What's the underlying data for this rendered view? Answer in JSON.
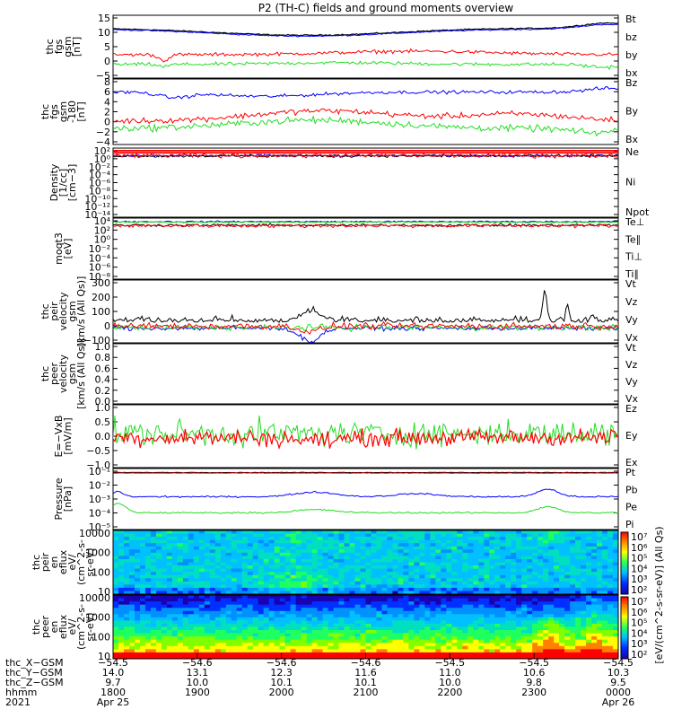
{
  "title": "P2 (TH-C) fields and ground moments overview",
  "palette": {
    "black": "#000000",
    "red": "#ff0000",
    "green": "#22dd22",
    "blue": "#0000ff"
  },
  "chart_data": [
    {
      "type": "line",
      "id": "p1",
      "ylabel": [
        "thc",
        "fgs",
        "gsm",
        "[nT]"
      ],
      "ticks": [
        "15",
        "10",
        "5",
        "0",
        "−5"
      ],
      "ylim": [
        -6,
        16
      ],
      "legend": [
        {
          "text": "Bt",
          "color": "black"
        },
        {
          "text": "bz",
          "color": "red"
        },
        {
          "text": "by",
          "color": "green"
        },
        {
          "text": "bx",
          "color": "blue"
        }
      ]
    },
    {
      "type": "line",
      "id": "p2",
      "ylabel": [
        "thc",
        "fgs",
        "gsm",
        "-180",
        "[nT]"
      ],
      "ticks": [
        "8",
        "6",
        "4",
        "2",
        "0",
        "−2",
        "−4"
      ],
      "ylim": [
        -5,
        9
      ],
      "legend": [
        {
          "text": "Bz",
          "color": "red"
        },
        {
          "text": "By",
          "color": "green"
        },
        {
          "text": "Bx",
          "color": "blue"
        }
      ]
    },
    {
      "type": "line",
      "id": "p3",
      "ylabel": [
        "Density",
        "[1/cc]",
        "[cm−3]"
      ],
      "ticks": [
        "10²",
        "10⁰",
        "10⁻²",
        "10⁻⁴",
        "10⁻⁶",
        "10⁻⁸",
        "10⁻¹⁰",
        "10⁻¹²",
        "10⁻¹⁴"
      ],
      "ylim": [
        1e-14,
        100.0
      ],
      "log": true,
      "legend": [
        {
          "text": "Ne",
          "color": "red"
        },
        {
          "text": "Ni",
          "color": "black"
        },
        {
          "text": "Npot",
          "color": "blue"
        }
      ]
    },
    {
      "type": "line",
      "id": "p4",
      "ylabel": [
        "moqt3",
        "[eV]"
      ],
      "ticks": [
        "10⁴",
        "10²",
        "10⁰",
        "10⁻²",
        "10⁻⁴",
        "10⁻⁶",
        "10⁻⁸"
      ],
      "ylim": [
        1e-08,
        10000.0
      ],
      "log": true,
      "legend": [
        {
          "text": "Te⊥",
          "color": "red"
        },
        {
          "text": "Te∥",
          "color": "black"
        },
        {
          "text": "Ti⊥",
          "color": "blue"
        },
        {
          "text": "Ti∥",
          "color": "green"
        }
      ]
    },
    {
      "type": "line",
      "id": "p5",
      "ylabel": [
        "thc",
        "peir",
        "velocity",
        "gsm",
        "[km/s (All Qs)]"
      ],
      "ticks": [
        "300",
        "200",
        "100",
        "0",
        "−100"
      ],
      "ylim": [
        -110,
        320
      ],
      "legend": [
        {
          "text": "Vt",
          "color": "black"
        },
        {
          "text": "Vz",
          "color": "red"
        },
        {
          "text": "Vy",
          "color": "green"
        },
        {
          "text": "Vx",
          "color": "blue"
        }
      ]
    },
    {
      "type": "line",
      "id": "p6",
      "ylabel": [
        "thc",
        "peer",
        "velocity",
        "gsm",
        "[km/s (All Qs)]"
      ],
      "ticks": [
        "1.0",
        "0.8",
        "0.6",
        "0.4",
        "0.2",
        "0.0"
      ],
      "ylim": [
        0,
        1
      ],
      "legend": [
        {
          "text": "Vt",
          "color": "black"
        },
        {
          "text": "Vz",
          "color": "red"
        },
        {
          "text": "Vy",
          "color": "green"
        },
        {
          "text": "Vx",
          "color": "blue"
        }
      ]
    },
    {
      "type": "line",
      "id": "p7",
      "ylabel": [
        "E=−VxB",
        "[mV/m]"
      ],
      "ticks": [
        "1.0",
        "0.5",
        "0.0",
        "−0.5",
        "−1.0"
      ],
      "ylim": [
        -1.1,
        1.2
      ],
      "legend": [
        {
          "text": "Ez",
          "color": "red"
        },
        {
          "text": "Ey",
          "color": "green"
        },
        {
          "text": "Ex",
          "color": "blue"
        }
      ]
    },
    {
      "type": "line",
      "id": "p8",
      "ylabel": [
        "Pressure",
        "[nPa]"
      ],
      "ticks": [
        "10⁻¹",
        "10⁻²",
        "10⁻³",
        "10⁻⁴",
        "10⁻⁵"
      ],
      "ylim": [
        1e-05,
        0.1
      ],
      "log": true,
      "legend": [
        {
          "text": "Pt",
          "color": "black"
        },
        {
          "text": "Pb",
          "color": "red"
        },
        {
          "text": "Pe",
          "color": "green"
        },
        {
          "text": "Pi",
          "color": "blue"
        }
      ]
    },
    {
      "type": "heatmap",
      "id": "p9",
      "ylabel": [
        "thc",
        "peir",
        "en",
        "eflux",
        "eV/",
        "(cm^2-s-",
        "sr-eV)"
      ],
      "ticks": [
        "10000",
        "1000",
        "100",
        "10"
      ],
      "ylim": [
        5,
        30000
      ],
      "log": true
    },
    {
      "type": "heatmap",
      "id": "p10",
      "ylabel": [
        "thc",
        "peer",
        "en",
        "eflux",
        "eV/",
        "(cm^2-s-",
        "sr-eV)"
      ],
      "ticks": [
        "10000",
        "1000",
        "100",
        "10"
      ],
      "ylim": [
        5,
        30000
      ],
      "log": true
    }
  ],
  "colorbar": {
    "ticks": [
      "10⁷",
      "10⁶",
      "10⁵",
      "10⁴",
      "10³",
      "10²",
      "10⁷",
      "10⁶",
      "10⁵",
      "10⁴",
      "10³",
      "10²"
    ],
    "label": "[eV/(cm^2-s-sr-eV)] (All Qs)"
  },
  "xaxis": {
    "rows": [
      {
        "label": "thc_X−GSM",
        "values": [
          "−54.5",
          "−54.6",
          "−54.6",
          "−54.6",
          "−54.5",
          "−54.5",
          "−54.5"
        ]
      },
      {
        "label": "thc_Y−GSM",
        "values": [
          "14.0",
          "13.1",
          "12.3",
          "11.6",
          "11.0",
          "10.6",
          "10.3"
        ]
      },
      {
        "label": "thc_Z−GSM",
        "values": [
          "9.7",
          "10.0",
          "10.1",
          "10.1",
          "10.0",
          "9.8",
          "9.5"
        ]
      },
      {
        "label": "hhmm",
        "values": [
          "1800",
          "1900",
          "2000",
          "2100",
          "2200",
          "2300",
          "0000"
        ]
      }
    ],
    "year": "2021",
    "date_start": "Apr 25",
    "date_end": "Apr 26"
  }
}
